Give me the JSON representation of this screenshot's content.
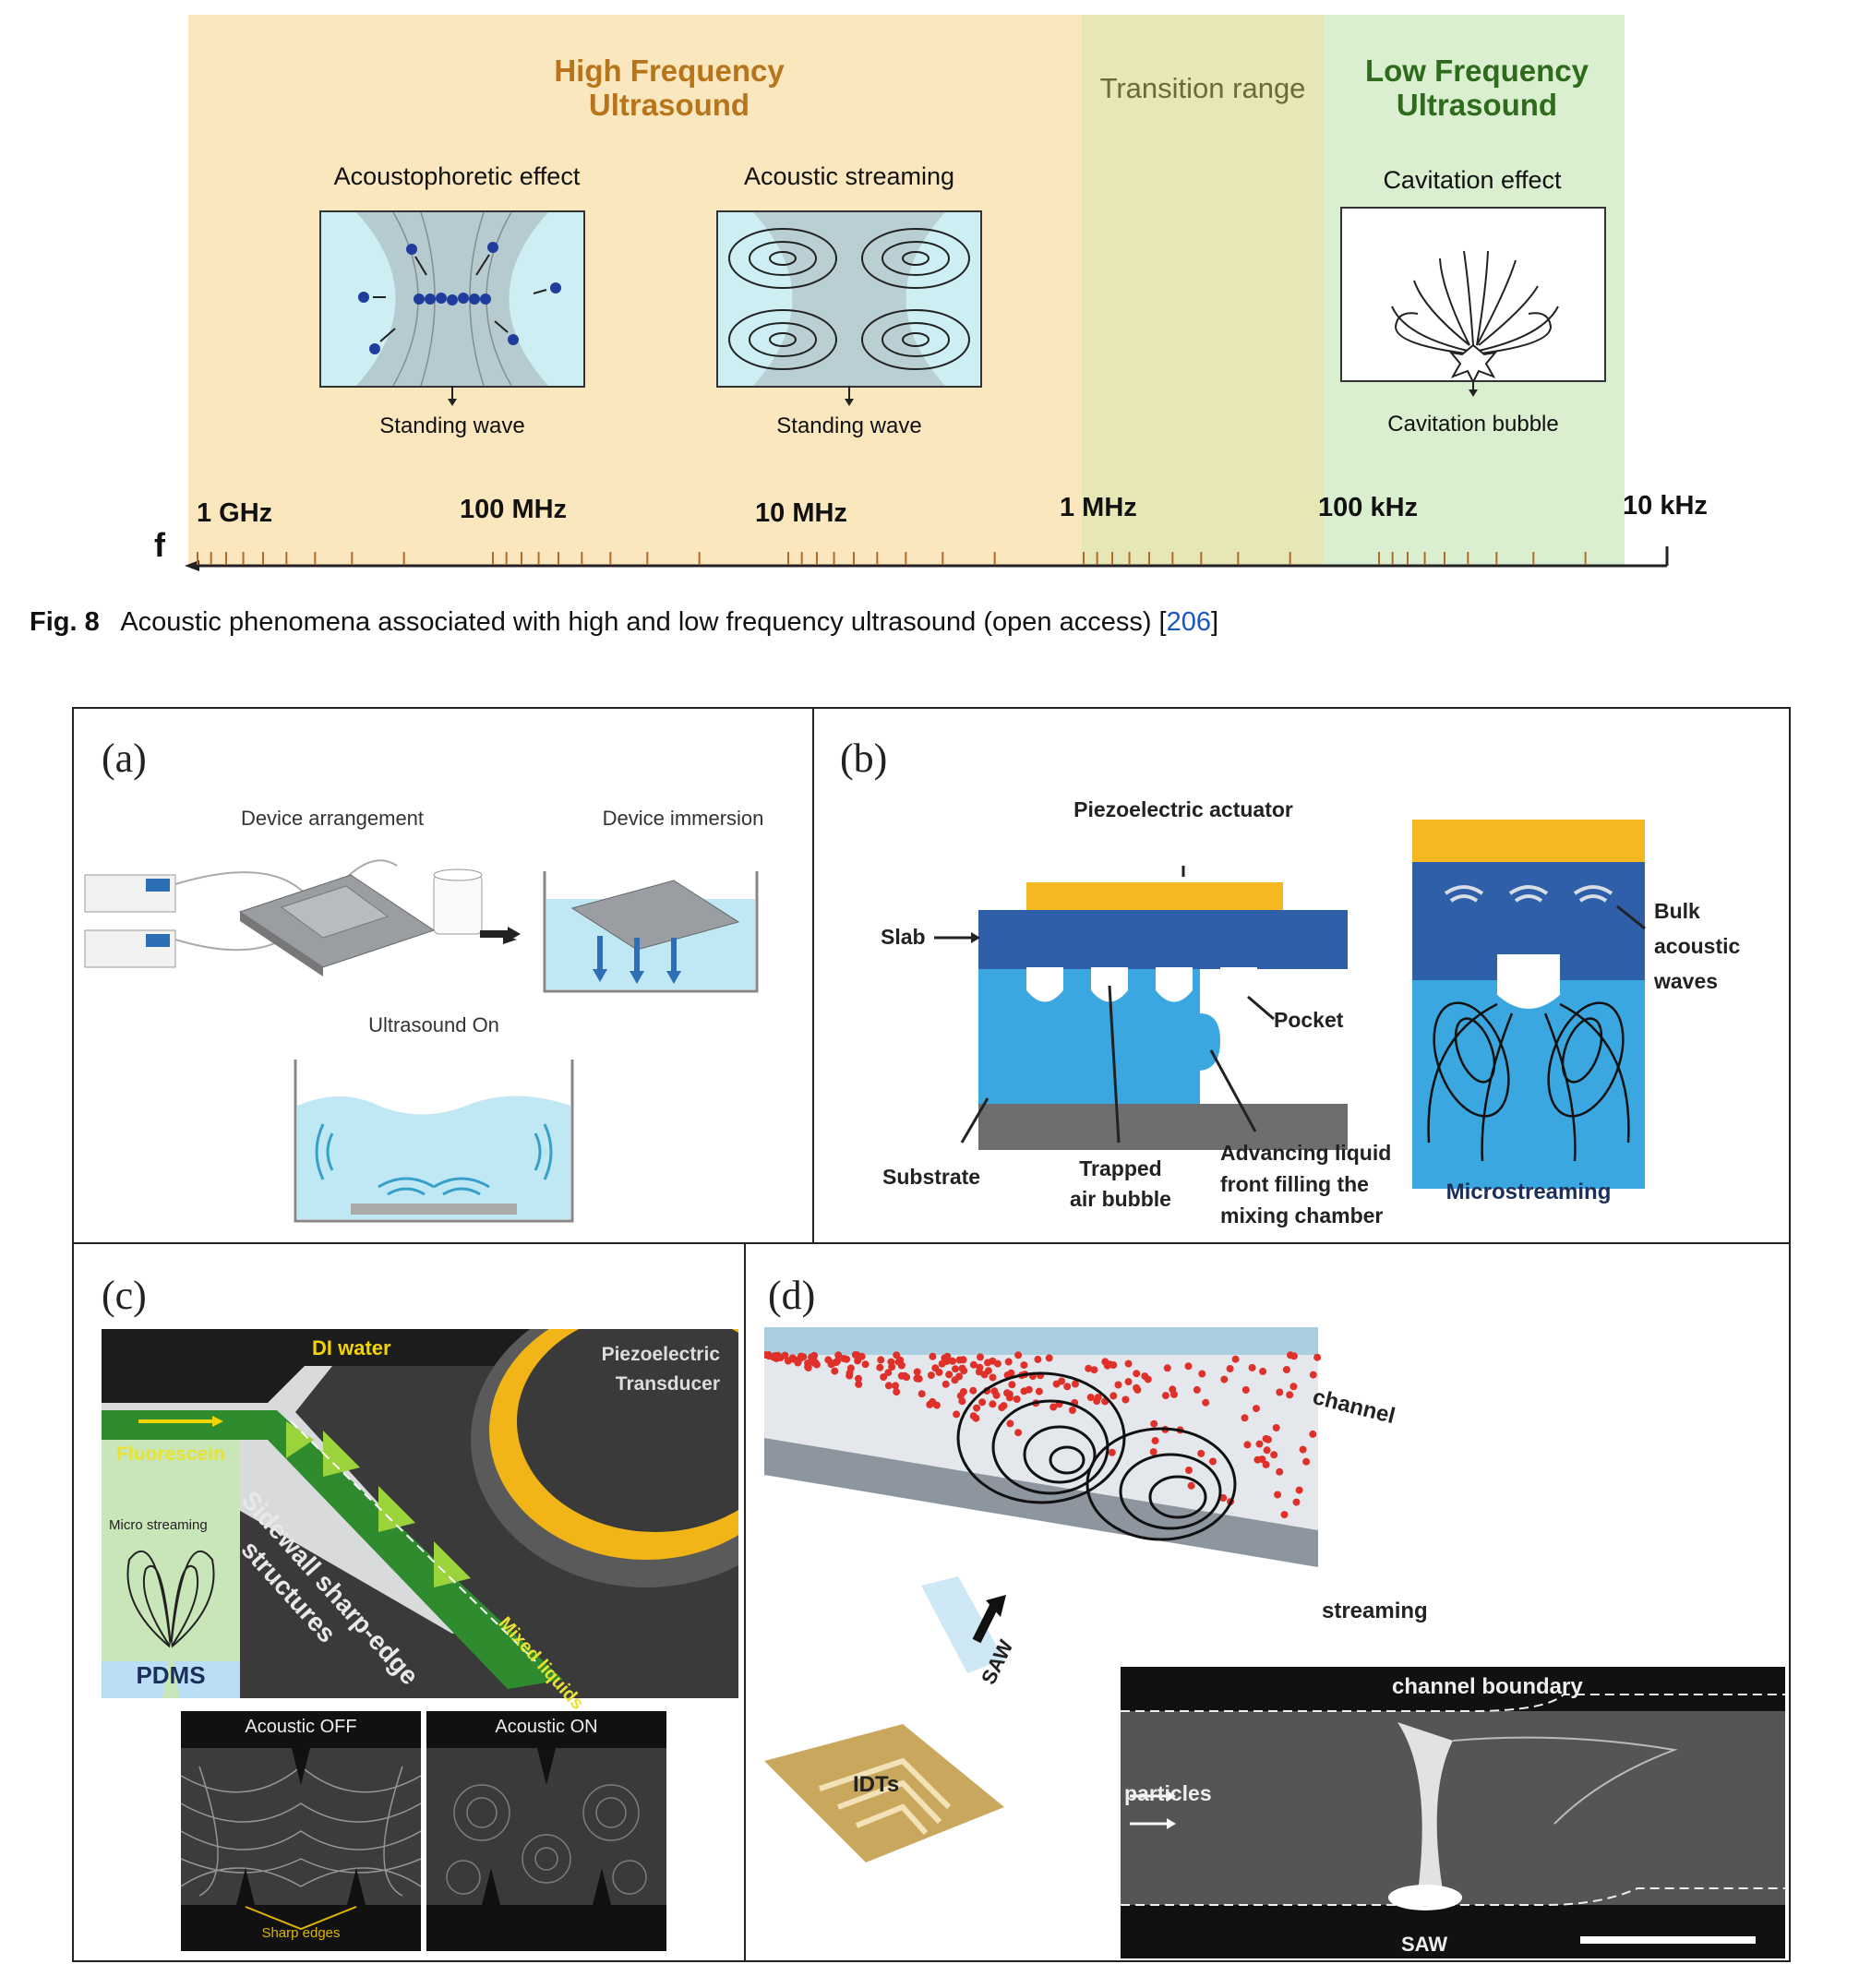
{
  "fig8": {
    "regions": {
      "high_line1": "High Frequency",
      "high_line2": "Ultrasound",
      "transition": "Transition range",
      "low_line1": "Low Frequency",
      "low_line2": "Ultrasound"
    },
    "effects": {
      "acoustophoretic": "Acoustophoretic effect",
      "streaming": "Acoustic streaming",
      "cavitation": "Cavitation effect",
      "standing_wave_1": "Standing wave",
      "standing_wave_2": "Standing wave",
      "cavitation_bubble": "Cavitation bubble"
    },
    "axis": {
      "symbol": "f",
      "ticks": [
        "1 GHz",
        "100 MHz",
        "10 MHz",
        "1 MHz",
        "100 kHz",
        "10 kHz"
      ]
    },
    "caption": {
      "label": "Fig. 8",
      "text": "Acoustic phenomena associated with high and low frequency ultrasound (open access) [",
      "ref": "206",
      "close": "]"
    },
    "colors": {
      "high_bg": "#fbe7bd",
      "transition_bg": "#e6e7b4",
      "low_bg": "#d9efcf",
      "high_title": "#b8741a",
      "transition_title": "#6a6a3a",
      "low_title": "#2f6b1c",
      "water": "#cdeef2",
      "particle": "#1f3d9c",
      "ref_link": "#1a55c8"
    }
  },
  "fig9": {
    "a": {
      "label": "(a)",
      "device_arrangement": "Device arrangement",
      "device_immersion": "Device immersion",
      "ultrasound_on": "Ultrasound On"
    },
    "b": {
      "label": "(b)",
      "piezo": "Piezoelectric actuator",
      "slab": "Slab",
      "pocket": "Pocket",
      "substrate": "Substrate",
      "trapped_1": "Trapped",
      "trapped_2": "air bubble",
      "advancing_1": "Advancing liquid",
      "advancing_2": "front filling the",
      "advancing_3": "mixing chamber",
      "bulk_1": "Bulk",
      "bulk_2": "acoustic",
      "bulk_3": "waves",
      "microstreaming": "Microstreaming"
    },
    "c": {
      "label": "(c)",
      "di_water": "DI water",
      "piezo_1": "Piezoelectric",
      "piezo_2": "Transducer",
      "fluorescein": "Fluorescein",
      "micro_streaming": "Micro streaming",
      "sidewall_1": "Sidewall sharp-edge",
      "sidewall_2": "structures",
      "mixed": "Mixed liquids",
      "pdms": "PDMS",
      "acoustic_off": "Acoustic OFF",
      "acoustic_on": "Acoustic ON",
      "sharp_edges": "Sharp edges"
    },
    "d": {
      "label": "(d)",
      "channel": "channel",
      "streaming": "streaming",
      "saw": "SAW",
      "idts": "IDTs",
      "channel_boundary": "channel boundary",
      "particles": "particles",
      "saw_bottom": "SAW"
    }
  }
}
